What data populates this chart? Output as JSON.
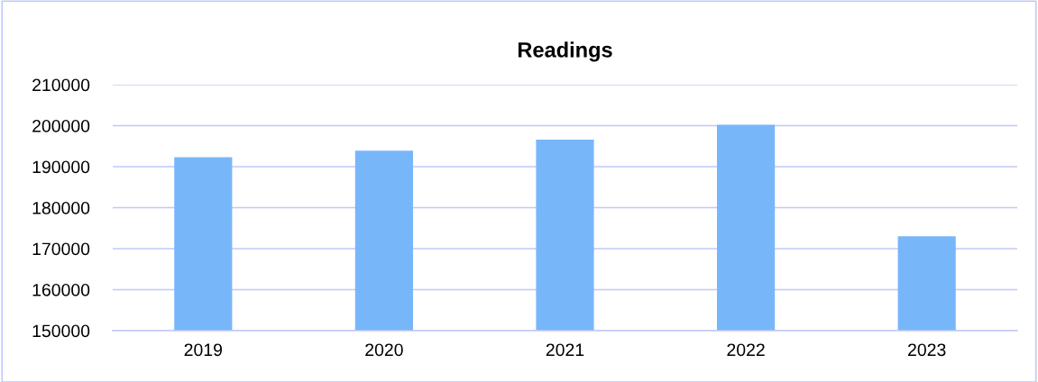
{
  "chart_data": {
    "type": "bar",
    "title": "Readings",
    "categories": [
      "2019",
      "2020",
      "2021",
      "2022",
      "2023"
    ],
    "values": [
      192300,
      193900,
      196600,
      200200,
      173000
    ],
    "color": "#78b6fa",
    "ylim": [
      150000,
      210000
    ],
    "yticks": [
      150000,
      160000,
      170000,
      180000,
      190000,
      200000,
      210000
    ],
    "grid": "y"
  }
}
